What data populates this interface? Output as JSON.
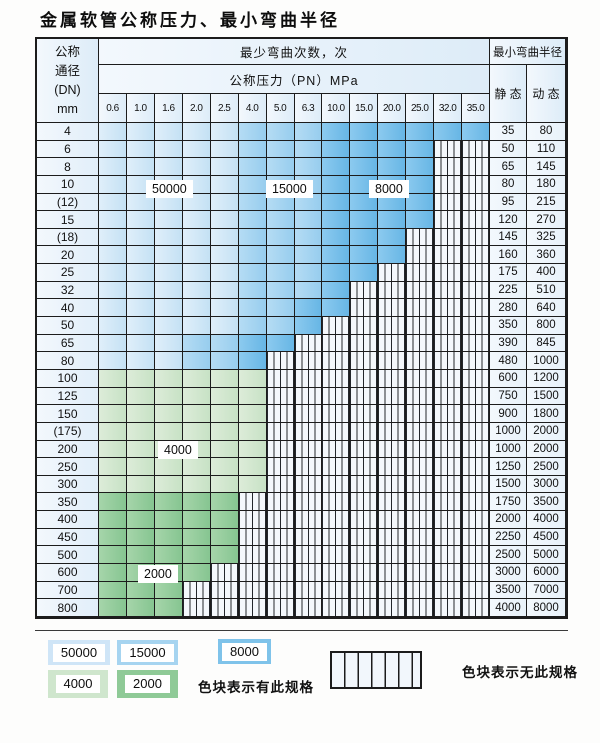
{
  "title": "金属软管公称压力、最小弯曲半径",
  "table": {
    "dn_header_lines": [
      "公称",
      "通径",
      "(DN)",
      "mm"
    ],
    "bend_cycles_header": "最少弯曲次数，次",
    "pressure_header": "公称压力（PN）MPa",
    "pressure_values": [
      "0.6",
      "1.0",
      "1.6",
      "2.0",
      "2.5",
      "4.0",
      "5.0",
      "6.3",
      "10.0",
      "15.0",
      "20.0",
      "25.0",
      "32.0",
      "35.0"
    ],
    "radius_header": "最小弯曲半径",
    "static_header": "静 态",
    "dynamic_header": "动 态",
    "rows": [
      {
        "dn": "4",
        "static": "35",
        "dynamic": "80",
        "zones": [
          [
            "b1",
            5
          ],
          [
            "b2",
            3
          ],
          [
            "b3",
            6
          ]
        ]
      },
      {
        "dn": "6",
        "static": "50",
        "dynamic": "110",
        "zones": [
          [
            "b1",
            5
          ],
          [
            "b2",
            3
          ],
          [
            "b3",
            4
          ]
        ]
      },
      {
        "dn": "8",
        "static": "65",
        "dynamic": "145",
        "zones": [
          [
            "b1",
            5
          ],
          [
            "b2",
            3
          ],
          [
            "b3",
            4
          ]
        ]
      },
      {
        "dn": "10",
        "static": "80",
        "dynamic": "180",
        "zones": [
          [
            "b1",
            5
          ],
          [
            "b2",
            3
          ],
          [
            "b3",
            4
          ]
        ]
      },
      {
        "dn": "(12)",
        "static": "95",
        "dynamic": "215",
        "zones": [
          [
            "b1",
            5
          ],
          [
            "b2",
            3
          ],
          [
            "b3",
            4
          ]
        ]
      },
      {
        "dn": "15",
        "static": "120",
        "dynamic": "270",
        "zones": [
          [
            "b1",
            5
          ],
          [
            "b2",
            3
          ],
          [
            "b3",
            4
          ]
        ]
      },
      {
        "dn": "(18)",
        "static": "145",
        "dynamic": "325",
        "zones": [
          [
            "b1",
            5
          ],
          [
            "b2",
            3
          ],
          [
            "b3",
            3
          ]
        ]
      },
      {
        "dn": "20",
        "static": "160",
        "dynamic": "360",
        "zones": [
          [
            "b1",
            5
          ],
          [
            "b2",
            3
          ],
          [
            "b3",
            3
          ]
        ]
      },
      {
        "dn": "25",
        "static": "175",
        "dynamic": "400",
        "zones": [
          [
            "b1",
            5
          ],
          [
            "b2",
            3
          ],
          [
            "b3",
            2
          ]
        ]
      },
      {
        "dn": "32",
        "static": "225",
        "dynamic": "510",
        "zones": [
          [
            "b1",
            5
          ],
          [
            "b2",
            3
          ],
          [
            "b3",
            1
          ]
        ]
      },
      {
        "dn": "40",
        "static": "280",
        "dynamic": "640",
        "zones": [
          [
            "b1",
            5
          ],
          [
            "b2",
            2
          ],
          [
            "b3",
            2
          ]
        ]
      },
      {
        "dn": "50",
        "static": "350",
        "dynamic": "800",
        "zones": [
          [
            "b1",
            5
          ],
          [
            "b2",
            2
          ],
          [
            "b3",
            1
          ]
        ]
      },
      {
        "dn": "65",
        "static": "390",
        "dynamic": "845",
        "zones": [
          [
            "b1",
            3
          ],
          [
            "b2",
            2
          ],
          [
            "b3",
            2
          ]
        ]
      },
      {
        "dn": "80",
        "static": "480",
        "dynamic": "1000",
        "zones": [
          [
            "b1",
            3
          ],
          [
            "b2",
            2
          ],
          [
            "b3",
            1
          ]
        ]
      },
      {
        "dn": "100",
        "static": "600",
        "dynamic": "1200",
        "zones": [
          [
            "g1",
            6
          ]
        ]
      },
      {
        "dn": "125",
        "static": "750",
        "dynamic": "1500",
        "zones": [
          [
            "g1",
            6
          ]
        ]
      },
      {
        "dn": "150",
        "static": "900",
        "dynamic": "1800",
        "zones": [
          [
            "g1",
            6
          ]
        ]
      },
      {
        "dn": "(175)",
        "static": "1000",
        "dynamic": "2000",
        "zones": [
          [
            "g1",
            6
          ]
        ]
      },
      {
        "dn": "200",
        "static": "1000",
        "dynamic": "2000",
        "zones": [
          [
            "g1",
            6
          ]
        ]
      },
      {
        "dn": "250",
        "static": "1250",
        "dynamic": "2500",
        "zones": [
          [
            "g1",
            6
          ]
        ]
      },
      {
        "dn": "300",
        "static": "1500",
        "dynamic": "3000",
        "zones": [
          [
            "g1",
            6
          ]
        ]
      },
      {
        "dn": "350",
        "static": "1750",
        "dynamic": "3500",
        "zones": [
          [
            "g2",
            5
          ]
        ]
      },
      {
        "dn": "400",
        "static": "2000",
        "dynamic": "4000",
        "zones": [
          [
            "g2",
            5
          ]
        ]
      },
      {
        "dn": "450",
        "static": "2250",
        "dynamic": "4500",
        "zones": [
          [
            "g2",
            5
          ]
        ]
      },
      {
        "dn": "500",
        "static": "2500",
        "dynamic": "5000",
        "zones": [
          [
            "g2",
            5
          ]
        ]
      },
      {
        "dn": "600",
        "static": "3000",
        "dynamic": "6000",
        "zones": [
          [
            "g2",
            4
          ]
        ]
      },
      {
        "dn": "700",
        "static": "3500",
        "dynamic": "7000",
        "zones": [
          [
            "g2",
            3
          ]
        ]
      },
      {
        "dn": "800",
        "static": "4000",
        "dynamic": "8000",
        "zones": [
          [
            "g2",
            3
          ]
        ]
      }
    ]
  },
  "zone_labels": {
    "l50000": "50000",
    "l15000": "15000",
    "l8000": "8000",
    "l4000": "4000",
    "l2000": "2000"
  },
  "legend": {
    "items": [
      {
        "value": "50000",
        "zone": "b1",
        "color": "#cfe5f7"
      },
      {
        "value": "15000",
        "zone": "b2",
        "color": "#a6d4f0"
      },
      {
        "value": "8000",
        "zone": "b3",
        "color": "#7fc3ea"
      },
      {
        "value": "4000",
        "zone": "g1",
        "color": "#cfe6cd"
      },
      {
        "value": "2000",
        "zone": "g2",
        "color": "#8fca97"
      }
    ],
    "has_spec_text": "色块表示有此规格",
    "no_spec_text": "色块表示无此规格"
  },
  "colors": {
    "cycles_50000": "#cfe5f7",
    "cycles_15000": "#a6d4f0",
    "cycles_8000": "#7fc3ea",
    "cycles_4000": "#cfe6cd",
    "cycles_2000": "#8fca97",
    "grid_line": "#1c1c1c",
    "header_fill": "#e4eff9"
  }
}
